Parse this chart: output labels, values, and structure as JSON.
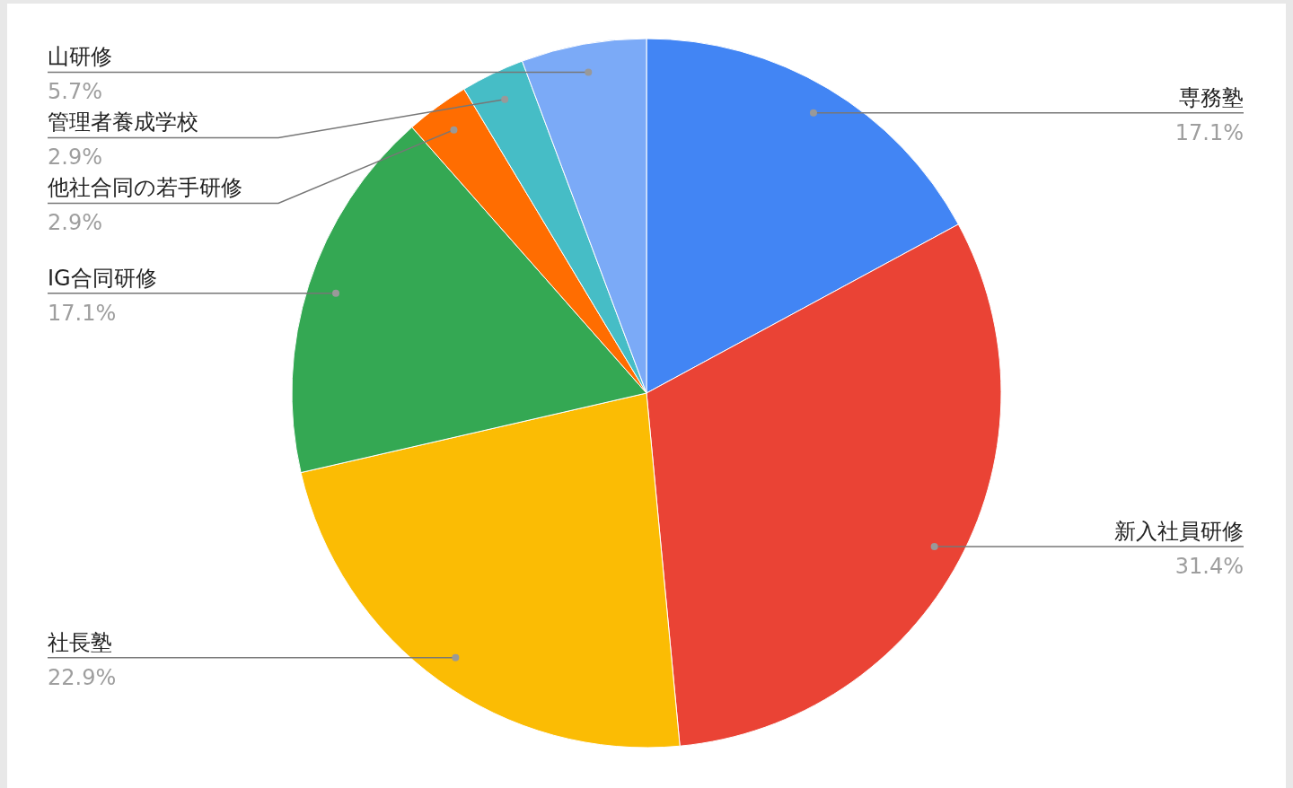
{
  "chart_data": {
    "type": "pie",
    "categories": [
      "専務塾",
      "新入社員研修",
      "社長塾",
      "IG合同研修",
      "他社合同の若手研修",
      "管理者養成学校",
      "山研修"
    ],
    "values": [
      17.1,
      31.4,
      22.9,
      17.1,
      2.9,
      2.9,
      5.7
    ],
    "value_labels": [
      "17.1%",
      "31.4%",
      "22.9%",
      "17.1%",
      "2.9%",
      "2.9%",
      "5.7%"
    ],
    "colors": [
      "#4285f4",
      "#ea4335",
      "#fbbc04",
      "#34a853",
      "#ff6d01",
      "#46bdc6",
      "#7baaf7"
    ]
  }
}
